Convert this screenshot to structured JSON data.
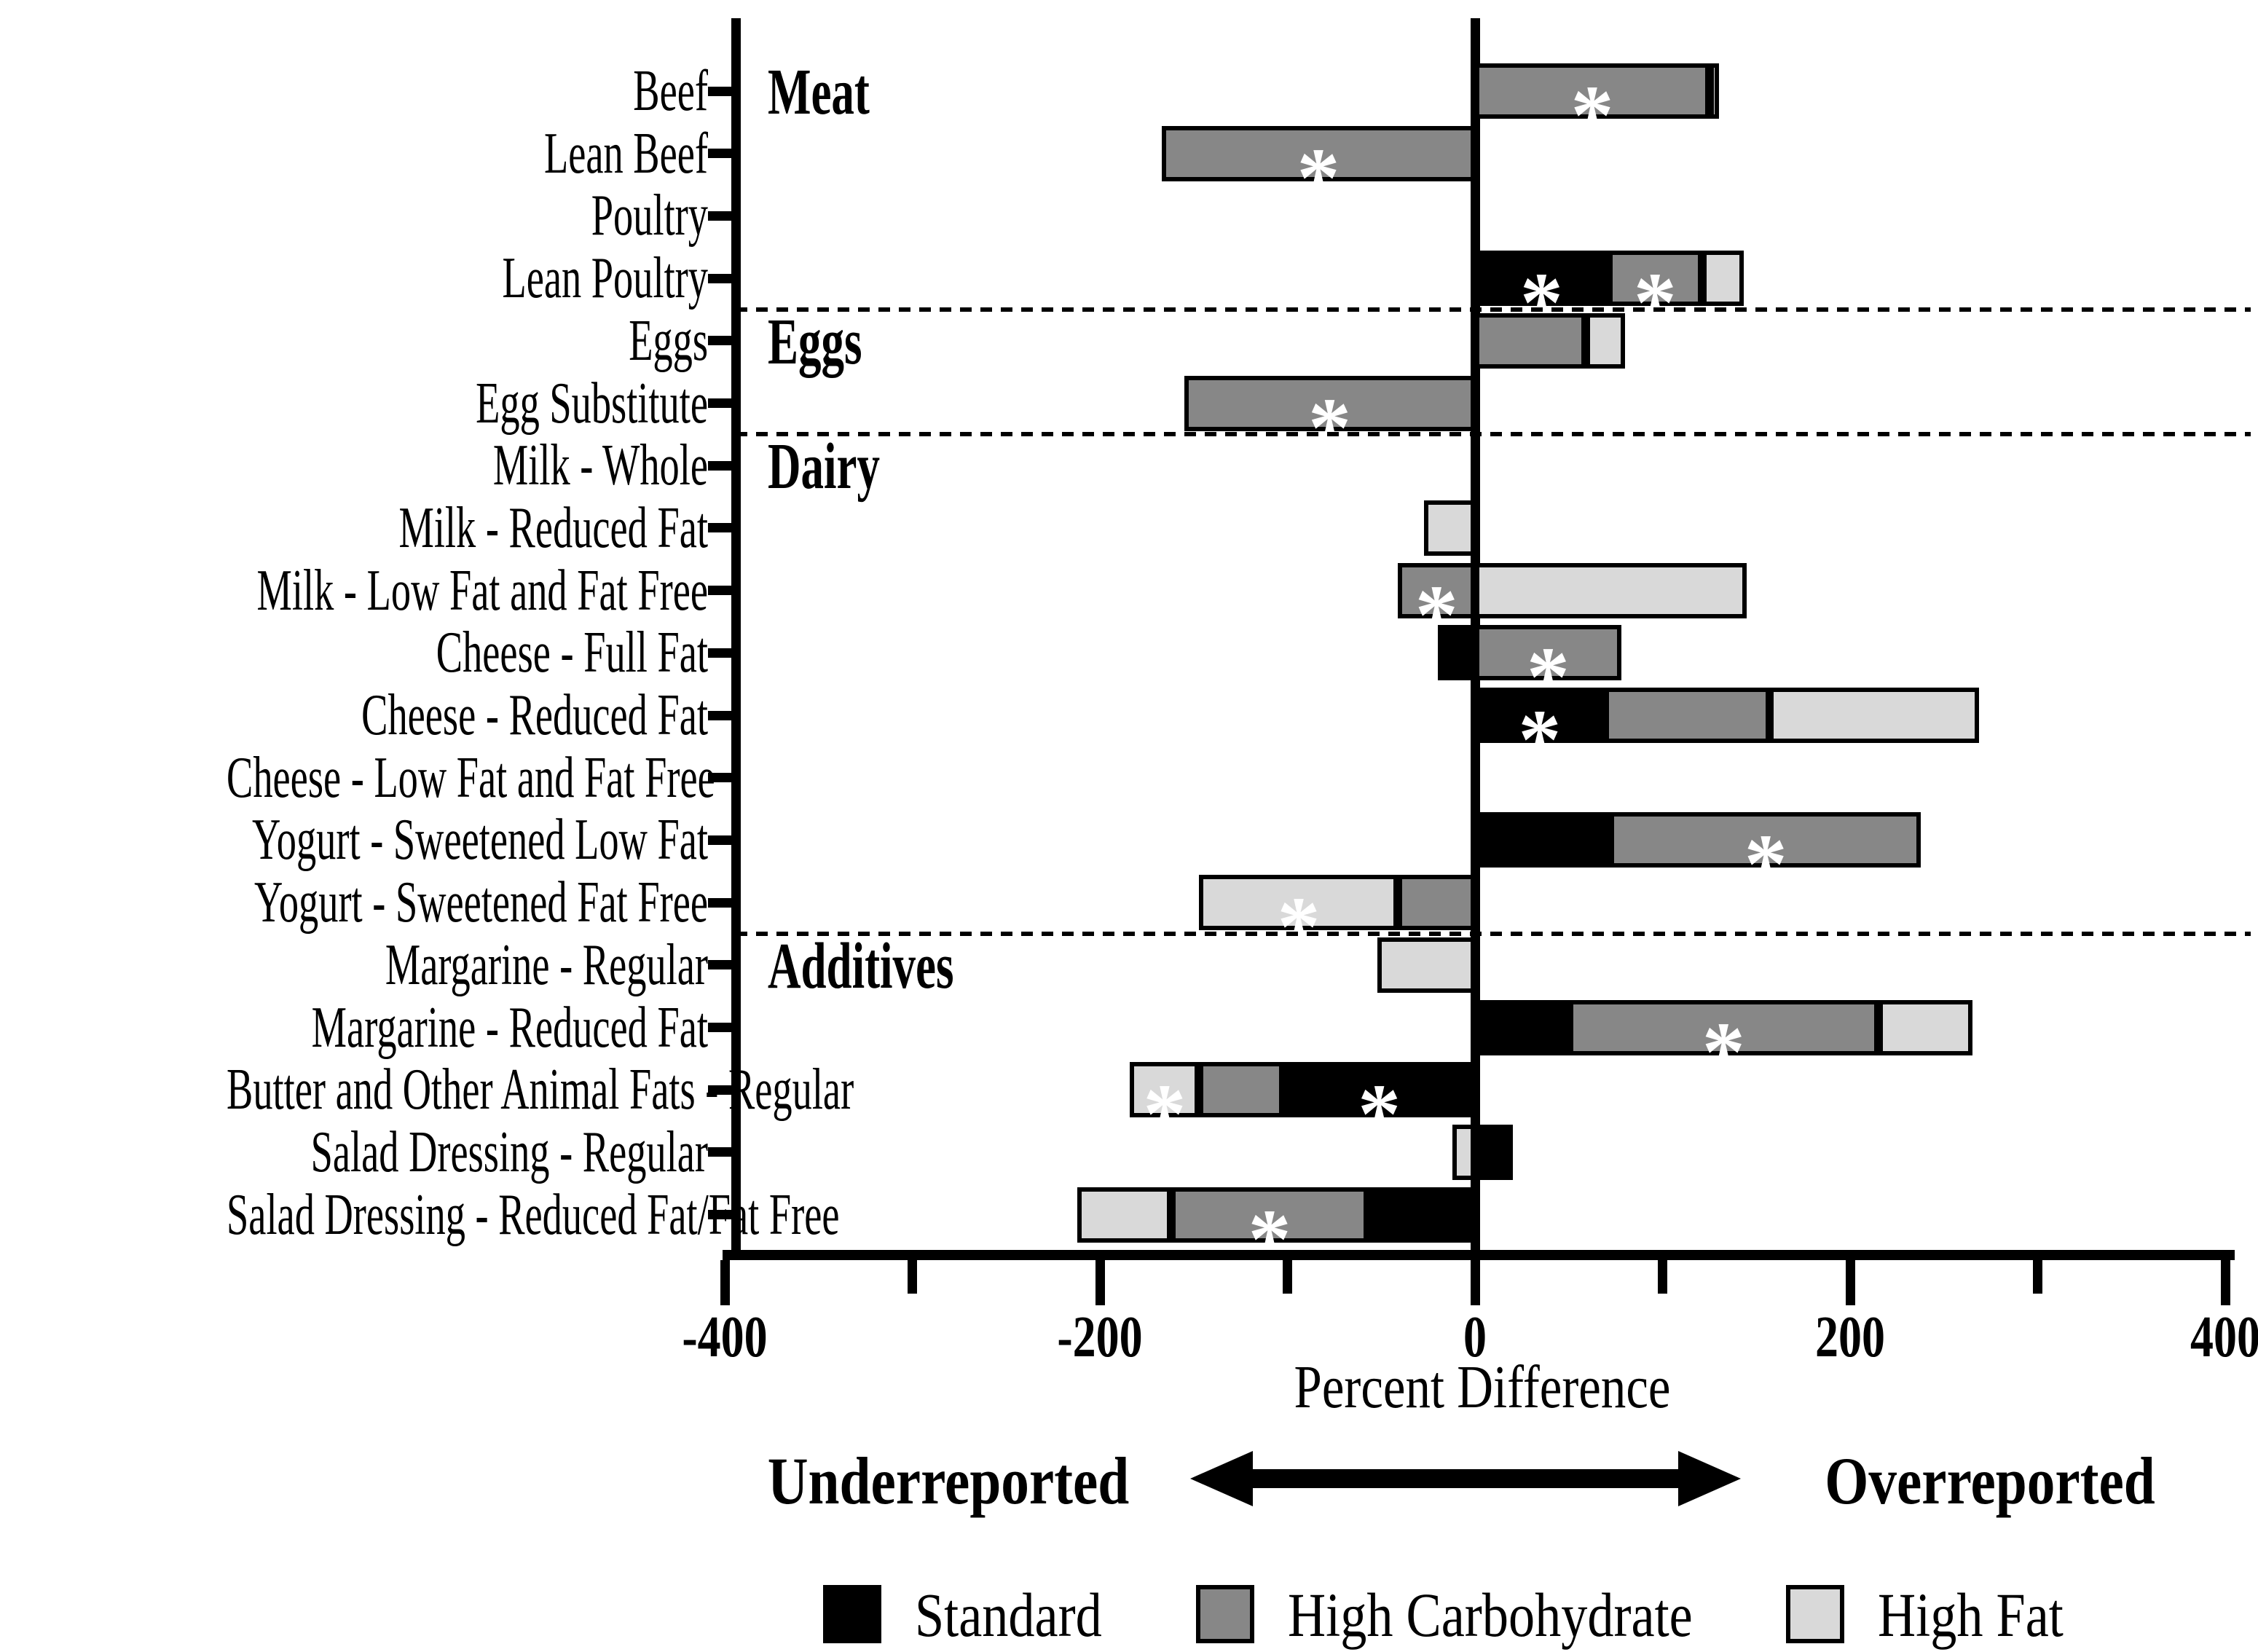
{
  "chart_data": {
    "type": "bar",
    "orientation": "horizontal",
    "stacked": true,
    "xlabel": "Percent Difference",
    "underreported_label": "Underreported",
    "overreported_label": "Overreported",
    "xlim": [
      -400,
      400
    ],
    "x_ticks_major": [
      -400,
      -200,
      0,
      200,
      400
    ],
    "x_ticks_minor": [
      -300,
      -100,
      100,
      300
    ],
    "grid": false,
    "legend_position": "bottom",
    "series_order": [
      "standard",
      "high_carbohydrate",
      "high_fat"
    ],
    "legend": [
      {
        "key": "standard",
        "label": "Standard",
        "color": "#000000"
      },
      {
        "key": "high_carbohydrate",
        "label": "High Carbohydrate",
        "color": "#878787"
      },
      {
        "key": "high_fat",
        "label": "High Fat",
        "color": "#d9d9d9"
      }
    ],
    "significance_marker": "*",
    "group_labels": [
      {
        "label": "Meat",
        "row_index": 0
      },
      {
        "label": "Eggs",
        "row_index": 4
      },
      {
        "label": "Dairy",
        "row_index": 6
      },
      {
        "label": "Additives",
        "row_index": 14
      }
    ],
    "separators_after_rows": [
      3,
      5,
      13
    ],
    "rows": [
      {
        "label": "Beef",
        "group": "Meat",
        "standard": 0,
        "high_carbohydrate": 125,
        "high_fat": 5,
        "significant": [
          "high_carbohydrate"
        ]
      },
      {
        "label": "Lean Beef",
        "group": "Meat",
        "standard": 0,
        "high_carbohydrate": -167,
        "high_fat": 0,
        "significant": [
          "high_carbohydrate"
        ]
      },
      {
        "label": "Poultry",
        "group": "Meat",
        "standard": 0,
        "high_carbohydrate": 0,
        "high_fat": 0,
        "significant": []
      },
      {
        "label": "Lean Poultry",
        "group": "Meat",
        "standard": 71,
        "high_carbohydrate": 50,
        "high_fat": 22,
        "significant": [
          "standard",
          "high_carbohydrate"
        ]
      },
      {
        "label": "Eggs",
        "group": "Eggs",
        "standard": 0,
        "high_carbohydrate": 59,
        "high_fat": 21,
        "significant": []
      },
      {
        "label": "Egg Substitute",
        "group": "Eggs",
        "standard": 0,
        "high_carbohydrate": -155,
        "high_fat": 0,
        "significant": [
          "high_carbohydrate"
        ]
      },
      {
        "label": "Milk - Whole",
        "group": "Dairy",
        "standard": 0,
        "high_carbohydrate": 0,
        "high_fat": 0,
        "significant": []
      },
      {
        "label": "Milk - Reduced Fat",
        "group": "Dairy",
        "standard": 0,
        "high_carbohydrate": 0,
        "high_fat": -27,
        "significant": []
      },
      {
        "label": "Milk - Low Fat and Fat Free",
        "group": "Dairy",
        "standard": 0,
        "high_carbohydrate": -41,
        "high_fat": 145,
        "significant": [
          "high_carbohydrate"
        ]
      },
      {
        "label": "Cheese - Full Fat",
        "group": "Dairy",
        "standard": -16,
        "high_carbohydrate": 78,
        "high_fat": -4,
        "significant": [
          "high_carbohydrate"
        ]
      },
      {
        "label": "Cheese - Reduced Fat",
        "group": "Dairy",
        "standard": 69,
        "high_carbohydrate": 88,
        "high_fat": 112,
        "significant": [
          "standard"
        ]
      },
      {
        "label": "Cheese - Low Fat and Fat Free",
        "group": "Dairy",
        "standard": 0,
        "high_carbohydrate": 0,
        "high_fat": 0,
        "significant": []
      },
      {
        "label": "Yogurt - Sweetened Low Fat",
        "group": "Dairy",
        "standard": 72,
        "high_carbohydrate": 166,
        "high_fat": 0,
        "significant": [
          "high_carbohydrate"
        ]
      },
      {
        "label": "Yogurt - Sweetened Fat Free",
        "group": "Dairy",
        "standard": 0,
        "high_carbohydrate": -41,
        "high_fat": -106,
        "significant": [
          "high_fat"
        ]
      },
      {
        "label": "Margarine - Regular",
        "group": "Additives",
        "standard": 0,
        "high_carbohydrate": 0,
        "high_fat": -52,
        "significant": []
      },
      {
        "label": "Margarine - Reduced Fat",
        "group": "Additives",
        "standard": 50,
        "high_carbohydrate": 165,
        "high_fat": 50,
        "significant": [
          "high_carbohydrate"
        ]
      },
      {
        "label": "Butter and Other Animal Fats - Regular",
        "group": "Additives",
        "standard": -102,
        "high_carbohydrate": -45,
        "high_fat": -37,
        "significant": [
          "standard",
          "high_fat"
        ]
      },
      {
        "label": "Salad Dressing - Regular",
        "group": "Additives",
        "standard": 20,
        "high_carbohydrate": 0,
        "high_fat": -12,
        "significant": []
      },
      {
        "label": "Salad Dressing - Reduced Fat/Fat Free",
        "group": "Additives",
        "standard": -57,
        "high_carbohydrate": -105,
        "high_fat": -50,
        "significant": [
          "high_carbohydrate"
        ]
      }
    ]
  }
}
